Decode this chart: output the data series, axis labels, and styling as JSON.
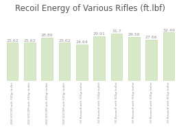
{
  "title": "Recoil Energy of Various Rifles (ft.lbf)",
  "values": [
    25.62,
    25.62,
    28.89,
    25.62,
    24.64,
    29.91,
    31.7,
    29.56,
    27.66,
    32.49
  ],
  "labels": [
    ".458 SOCOM with 300gr bullet",
    ".458 SOCOM with 350gr bullet",
    ".458 SOCOM with 405gr bullet",
    ".458 SOCOM with 500gr bullet",
    ".50 Beowulf with 325gr bullet",
    ".50 Beowulf with 334gr bullet",
    ".50 Beowulf with 400gr bullet",
    ".50 Beowulf with 350gr bullet",
    ".50 Beowulf with 300gr bullet",
    ".50 Beowulf with 450gr bullet"
  ],
  "bar_color": "#d6e8c8",
  "bar_edge_color": "#b8d8a0",
  "value_color": "#909090",
  "title_color": "#505050",
  "label_color": "#909090",
  "background_color": "#ffffff",
  "plot_bg_color": "#ffffff",
  "ylim": [
    0,
    42
  ],
  "title_fontsize": 8.5,
  "value_fontsize": 4.5,
  "label_fontsize": 3.0,
  "bar_width": 0.65
}
